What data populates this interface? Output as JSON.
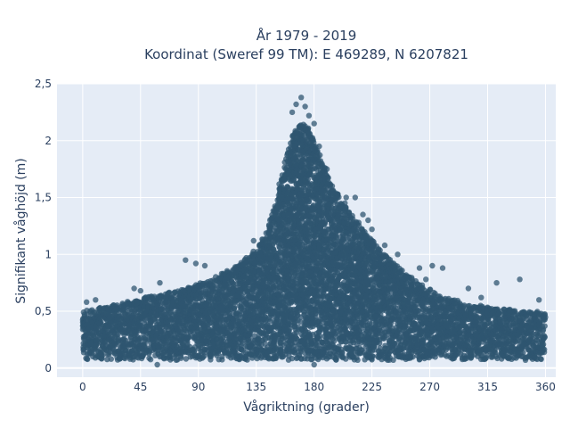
{
  "chart_data": {
    "type": "scatter",
    "title_line1": "År 1979 - 2019",
    "title_line2": "Koordinat (Sweref 99 TM): E 469289, N 6207821",
    "xlabel": "Vågriktning (grader)",
    "ylabel": "Signifikant våghöjd (m)",
    "xlim": [
      -20,
      368
    ],
    "ylim": [
      -0.08,
      2.5
    ],
    "x_ticks": [
      0,
      45,
      90,
      135,
      180,
      225,
      270,
      315,
      360
    ],
    "x_tick_labels": [
      "0",
      "45",
      "90",
      "135",
      "180",
      "225",
      "270",
      "315",
      "360"
    ],
    "y_ticks": [
      0,
      0.5,
      1,
      1.5,
      2,
      2.5
    ],
    "y_tick_labels": [
      "0",
      "0,5",
      "1",
      "1,5",
      "2",
      "2,5"
    ],
    "grid": true,
    "marker_color": "#2f5570",
    "plot_background": "#e5ecf6",
    "upper_envelope": {
      "x": [
        0,
        20,
        40,
        60,
        80,
        100,
        120,
        135,
        145,
        150,
        155,
        160,
        165,
        170,
        175,
        180,
        185,
        190,
        200,
        210,
        220,
        230,
        240,
        250,
        260,
        270,
        280,
        290,
        300,
        310,
        320,
        330,
        340,
        350,
        360
      ],
      "y": [
        0.5,
        0.55,
        0.6,
        0.65,
        0.7,
        0.78,
        0.9,
        1.05,
        1.25,
        1.45,
        1.7,
        1.95,
        2.1,
        2.15,
        2.12,
        2.0,
        1.85,
        1.7,
        1.5,
        1.35,
        1.2,
        1.05,
        0.95,
        0.85,
        0.75,
        0.7,
        0.62,
        0.6,
        0.55,
        0.55,
        0.52,
        0.52,
        0.5,
        0.5,
        0.5
      ]
    },
    "dense_lower_bound": 0.07,
    "outlier_points": [
      {
        "x": 163,
        "y": 2.25
      },
      {
        "x": 166,
        "y": 2.32
      },
      {
        "x": 170,
        "y": 2.38
      },
      {
        "x": 173,
        "y": 2.3
      },
      {
        "x": 176,
        "y": 2.22
      },
      {
        "x": 180,
        "y": 2.15
      },
      {
        "x": 184,
        "y": 1.95
      },
      {
        "x": 186,
        "y": 1.8
      },
      {
        "x": 190,
        "y": 1.75
      },
      {
        "x": 195,
        "y": 1.55
      },
      {
        "x": 205,
        "y": 1.5
      },
      {
        "x": 212,
        "y": 1.5
      },
      {
        "x": 218,
        "y": 1.35
      },
      {
        "x": 222,
        "y": 1.3
      },
      {
        "x": 225,
        "y": 1.22
      },
      {
        "x": 235,
        "y": 1.08
      },
      {
        "x": 245,
        "y": 1.0
      },
      {
        "x": 262,
        "y": 0.88
      },
      {
        "x": 272,
        "y": 0.9
      },
      {
        "x": 280,
        "y": 0.88
      },
      {
        "x": 300,
        "y": 0.7
      },
      {
        "x": 322,
        "y": 0.75
      },
      {
        "x": 340,
        "y": 0.78
      },
      {
        "x": 145,
        "y": 1.25
      },
      {
        "x": 133,
        "y": 1.12
      },
      {
        "x": 80,
        "y": 0.95
      },
      {
        "x": 88,
        "y": 0.92
      },
      {
        "x": 95,
        "y": 0.9
      },
      {
        "x": 60,
        "y": 0.75
      },
      {
        "x": 40,
        "y": 0.7
      },
      {
        "x": 45,
        "y": 0.68
      },
      {
        "x": 10,
        "y": 0.6
      },
      {
        "x": 355,
        "y": 0.6
      },
      {
        "x": 3,
        "y": 0.58
      },
      {
        "x": 310,
        "y": 0.62
      },
      {
        "x": 58,
        "y": 0.03
      },
      {
        "x": 180,
        "y": 0.03
      },
      {
        "x": 130,
        "y": 0.95
      },
      {
        "x": 267,
        "y": 0.78
      }
    ]
  }
}
